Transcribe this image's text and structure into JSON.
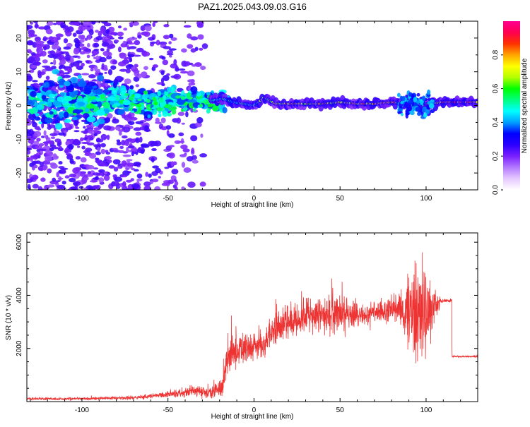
{
  "figure": {
    "title": "PAZ1.2025.043.09.03.G16"
  },
  "chart_data": [
    {
      "type": "heatmap",
      "xlabel": "Height of straight line (km)",
      "ylabel": "Frequency (Hz)",
      "xlim": [
        -132,
        130
      ],
      "ylim": [
        -25,
        25
      ],
      "xticks": [
        -100,
        -50,
        0,
        50,
        100
      ],
      "xtick_labels": [
        "-100",
        "-50",
        "0",
        "50",
        "100"
      ],
      "yticks": [
        -20,
        -10,
        0,
        10,
        20
      ],
      "ytick_labels": [
        "-20",
        "-10",
        "0",
        "10",
        "20"
      ],
      "colorbar": {
        "label": "Normalized spectral amplitude",
        "range": [
          0,
          1
        ],
        "ticks": [
          0.0,
          0.2,
          0.4,
          0.6,
          0.8
        ],
        "tick_labels": [
          "0.0",
          "0.2",
          "0.4",
          "0.6",
          "0.8"
        ],
        "colors": [
          "#ffffff",
          "#e6c8ff",
          "#b37aff",
          "#7a1fff",
          "#2a00ff",
          "#0000ff",
          "#00a0ff",
          "#00ffff",
          "#00ff80",
          "#00ff00",
          "#b4ff00",
          "#ffff00",
          "#ffa500",
          "#ff3000",
          "#ff0050",
          "#ff0090"
        ]
      },
      "ridge": [
        {
          "x": -24,
          "f": 1.5,
          "a": 0.45
        },
        {
          "x": -18,
          "f": 2.0,
          "a": 0.5
        },
        {
          "x": -12,
          "f": 1.0,
          "a": 0.5
        },
        {
          "x": -6,
          "f": 0.5,
          "a": 0.55
        },
        {
          "x": 0,
          "f": 0.0,
          "a": 0.6
        },
        {
          "x": 3,
          "f": 1.0,
          "a": 0.6
        },
        {
          "x": 6,
          "f": 2.5,
          "a": 0.8
        },
        {
          "x": 9,
          "f": 1.5,
          "a": 0.7
        },
        {
          "x": 13,
          "f": 0.5,
          "a": 0.7
        },
        {
          "x": 20,
          "f": 0.5,
          "a": 0.8
        },
        {
          "x": 30,
          "f": 0.5,
          "a": 0.75
        },
        {
          "x": 40,
          "f": 0.5,
          "a": 0.8
        },
        {
          "x": 50,
          "f": 1.0,
          "a": 0.75
        },
        {
          "x": 60,
          "f": 0.5,
          "a": 0.8
        },
        {
          "x": 70,
          "f": 0.5,
          "a": 0.75
        },
        {
          "x": 80,
          "f": 1.0,
          "a": 0.8
        },
        {
          "x": 90,
          "f": 0.5,
          "a": 0.6
        },
        {
          "x": 97,
          "f": 0.0,
          "a": 0.5
        },
        {
          "x": 102,
          "f": 0.5,
          "a": 0.75
        },
        {
          "x": 110,
          "f": 1.0,
          "a": 0.85
        },
        {
          "x": 120,
          "f": 1.0,
          "a": 0.85
        },
        {
          "x": 130,
          "f": 1.0,
          "a": 0.85
        }
      ]
    },
    {
      "type": "line",
      "xlabel": "Height of straight line (km)",
      "ylabel": "SNR (10 * v/v)",
      "xlim": [
        -132,
        130
      ],
      "ylim": [
        0,
        6350
      ],
      "xticks": [
        -100,
        -50,
        0,
        50,
        100
      ],
      "xtick_labels": [
        "-100",
        "-50",
        "0",
        "50",
        "100"
      ],
      "yticks": [
        2000,
        4000,
        6000
      ],
      "ytick_labels": [
        "2000",
        "4000",
        "6000"
      ],
      "color": "#ee3333",
      "envelope": [
        {
          "x": -132,
          "base": 100,
          "amp": 60
        },
        {
          "x": -100,
          "base": 110,
          "amp": 70
        },
        {
          "x": -70,
          "base": 150,
          "amp": 100
        },
        {
          "x": -50,
          "base": 250,
          "amp": 180
        },
        {
          "x": -35,
          "base": 400,
          "amp": 300
        },
        {
          "x": -25,
          "base": 300,
          "amp": 350
        },
        {
          "x": -18,
          "base": 600,
          "amp": 500
        },
        {
          "x": -15,
          "base": 1800,
          "amp": 1100
        },
        {
          "x": -5,
          "base": 2000,
          "amp": 800
        },
        {
          "x": 5,
          "base": 2200,
          "amp": 700
        },
        {
          "x": 15,
          "base": 2800,
          "amp": 900
        },
        {
          "x": 25,
          "base": 3100,
          "amp": 900
        },
        {
          "x": 35,
          "base": 3200,
          "amp": 1000
        },
        {
          "x": 45,
          "base": 3300,
          "amp": 1100
        },
        {
          "x": 55,
          "base": 3200,
          "amp": 800
        },
        {
          "x": 65,
          "base": 3300,
          "amp": 500
        },
        {
          "x": 75,
          "base": 3400,
          "amp": 600
        },
        {
          "x": 85,
          "base": 3500,
          "amp": 800
        },
        {
          "x": 92,
          "base": 3300,
          "amp": 2600
        },
        {
          "x": 100,
          "base": 3200,
          "amp": 2800
        },
        {
          "x": 105,
          "base": 3700,
          "amp": 800
        },
        {
          "x": 110,
          "base": 3800,
          "amp": 100
        },
        {
          "x": 114.9,
          "base": 3800,
          "amp": 80
        },
        {
          "x": 115.1,
          "base": 1700,
          "amp": 50
        },
        {
          "x": 130,
          "base": 1700,
          "amp": 60
        }
      ]
    }
  ]
}
